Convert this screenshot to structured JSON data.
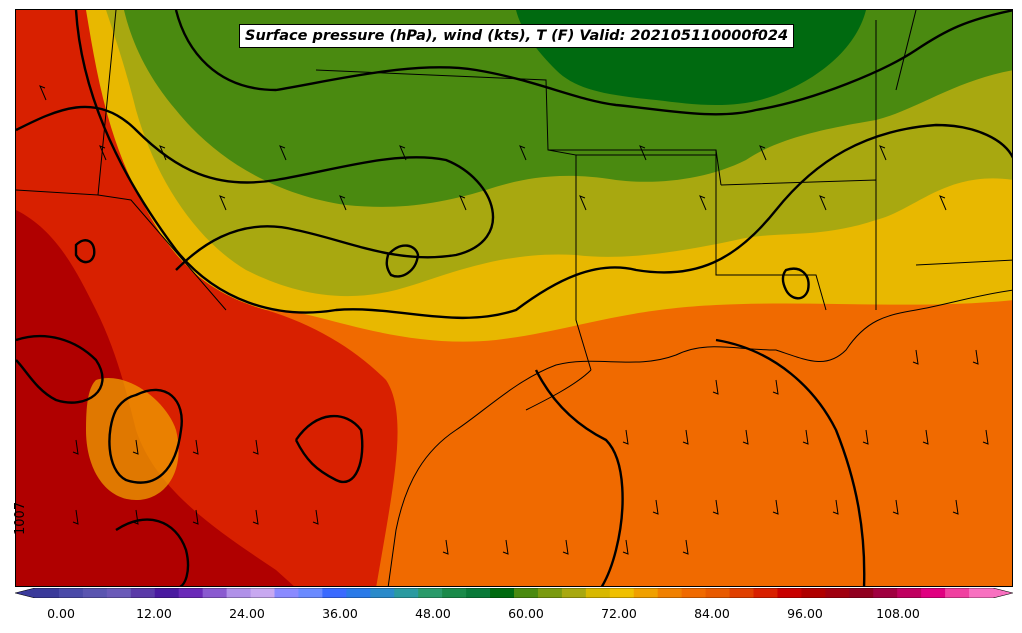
{
  "map": {
    "title": "Surface pressure (hPa), wind (kts), T (F) Valid: 202105110000f024",
    "isobar_label": "1007"
  },
  "colorbar": {
    "tick_labels": [
      "0.00",
      "12.00",
      "24.00",
      "36.00",
      "48.00",
      "60.00",
      "72.00",
      "84.00",
      "96.00",
      "108.00"
    ],
    "colors": [
      "#3a3a9a",
      "#4a4aa8",
      "#5a55b0",
      "#6a5ab8",
      "#5a3aa8",
      "#4a1aa0",
      "#6a2ab8",
      "#8a5ad0",
      "#b090e8",
      "#c8a8f0",
      "#8a8aff",
      "#6a8aff",
      "#3a6aff",
      "#2a7ae8",
      "#2a8aca",
      "#2a9aa0",
      "#2a9a6a",
      "#1a8a4a",
      "#0a7a3a",
      "#006a10",
      "#4a8a10",
      "#7a9a10",
      "#a8a810",
      "#d8b800",
      "#f0c000",
      "#f0a000",
      "#f08000",
      "#f06a00",
      "#e85a00",
      "#e04000",
      "#d82000",
      "#c80000",
      "#b00000",
      "#a00010",
      "#900020",
      "#a00040",
      "#c00060",
      "#e00080",
      "#f040a0",
      "#f870c0"
    ]
  }
}
